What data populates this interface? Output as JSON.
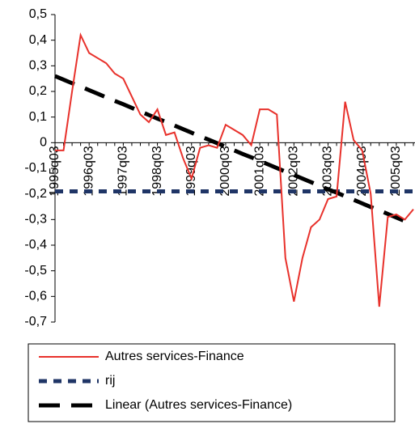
{
  "chart_data": {
    "type": "line",
    "categories": [
      "1995q03",
      null,
      null,
      null,
      "1996q03",
      null,
      null,
      null,
      "1997q03",
      null,
      null,
      null,
      "1998q03",
      null,
      null,
      null,
      "1999q03",
      null,
      null,
      null,
      "2000q03",
      null,
      null,
      null,
      "2001q03",
      null,
      null,
      null,
      "2002q03",
      null,
      null,
      null,
      "2003q03",
      null,
      null,
      null,
      "2004q03",
      null,
      null,
      null,
      "2005q03",
      null,
      null
    ],
    "series": [
      {
        "name": "Autres services-Finance",
        "color": "#e8312b",
        "style": "solid",
        "values": [
          -0.03,
          -0.03,
          0.2,
          0.42,
          0.35,
          0.33,
          0.31,
          0.27,
          0.25,
          0.18,
          0.11,
          0.08,
          0.13,
          0.03,
          0.04,
          -0.06,
          -0.14,
          -0.02,
          -0.01,
          -0.02,
          0.07,
          0.05,
          0.03,
          -0.01,
          0.13,
          0.13,
          0.11,
          -0.45,
          -0.62,
          -0.45,
          -0.33,
          -0.3,
          -0.22,
          -0.21,
          0.16,
          0.01,
          -0.03,
          -0.2,
          -0.64,
          -0.29,
          -0.28,
          -0.3,
          -0.26
        ]
      },
      {
        "name": "rij",
        "color": "#1f3566",
        "style": "dotted",
        "values": [
          -0.19,
          -0.19,
          -0.19,
          -0.19,
          -0.19,
          -0.19,
          -0.19,
          -0.19,
          -0.19,
          -0.19,
          -0.19,
          -0.19,
          -0.19,
          -0.19,
          -0.19,
          -0.19,
          -0.19,
          -0.19,
          -0.19,
          -0.19,
          -0.19,
          -0.19,
          -0.19,
          -0.19,
          -0.19,
          -0.19,
          -0.19,
          -0.19,
          -0.19,
          -0.19,
          -0.19,
          -0.19,
          -0.19,
          -0.19,
          -0.19,
          -0.19,
          -0.19,
          -0.19,
          -0.19,
          -0.19,
          -0.19,
          -0.19,
          -0.19
        ]
      },
      {
        "name": "Linear (Autres services-Finance)",
        "color": "#000000",
        "style": "dashed",
        "values": [
          0.26,
          0.246,
          0.232,
          0.219,
          0.205,
          0.191,
          0.177,
          0.163,
          0.15,
          0.136,
          0.122,
          0.108,
          0.094,
          0.081,
          0.067,
          0.053,
          0.039,
          0.025,
          0.012,
          -0.002,
          -0.016,
          -0.03,
          -0.044,
          -0.057,
          -0.071,
          -0.085,
          -0.099,
          -0.113,
          -0.126,
          -0.14,
          -0.154,
          -0.168,
          -0.182,
          -0.195,
          -0.209,
          -0.223,
          -0.237,
          -0.251,
          -0.264,
          -0.278,
          -0.292,
          -0.306,
          -0.32
        ]
      }
    ],
    "ylim": [
      -0.7,
      0.5
    ],
    "yticks": [
      {
        "value": 0.5,
        "label": "0,5"
      },
      {
        "value": 0.4,
        "label": "0,4"
      },
      {
        "value": 0.3,
        "label": "0,3"
      },
      {
        "value": 0.2,
        "label": "0,2"
      },
      {
        "value": 0.1,
        "label": "0,1"
      },
      0,
      {
        "value": -0.1,
        "label": "-0,1"
      },
      {
        "value": -0.2,
        "label": "-0,2"
      },
      {
        "value": -0.3,
        "label": "-0,3"
      },
      {
        "value": -0.4,
        "label": "-0,4"
      },
      {
        "value": -0.5,
        "label": "-0,5"
      },
      {
        "value": -0.6,
        "label": "-0,6"
      },
      {
        "value": -0.7,
        "label": "-0,7"
      }
    ],
    "grid": false,
    "legend": "bottom"
  }
}
